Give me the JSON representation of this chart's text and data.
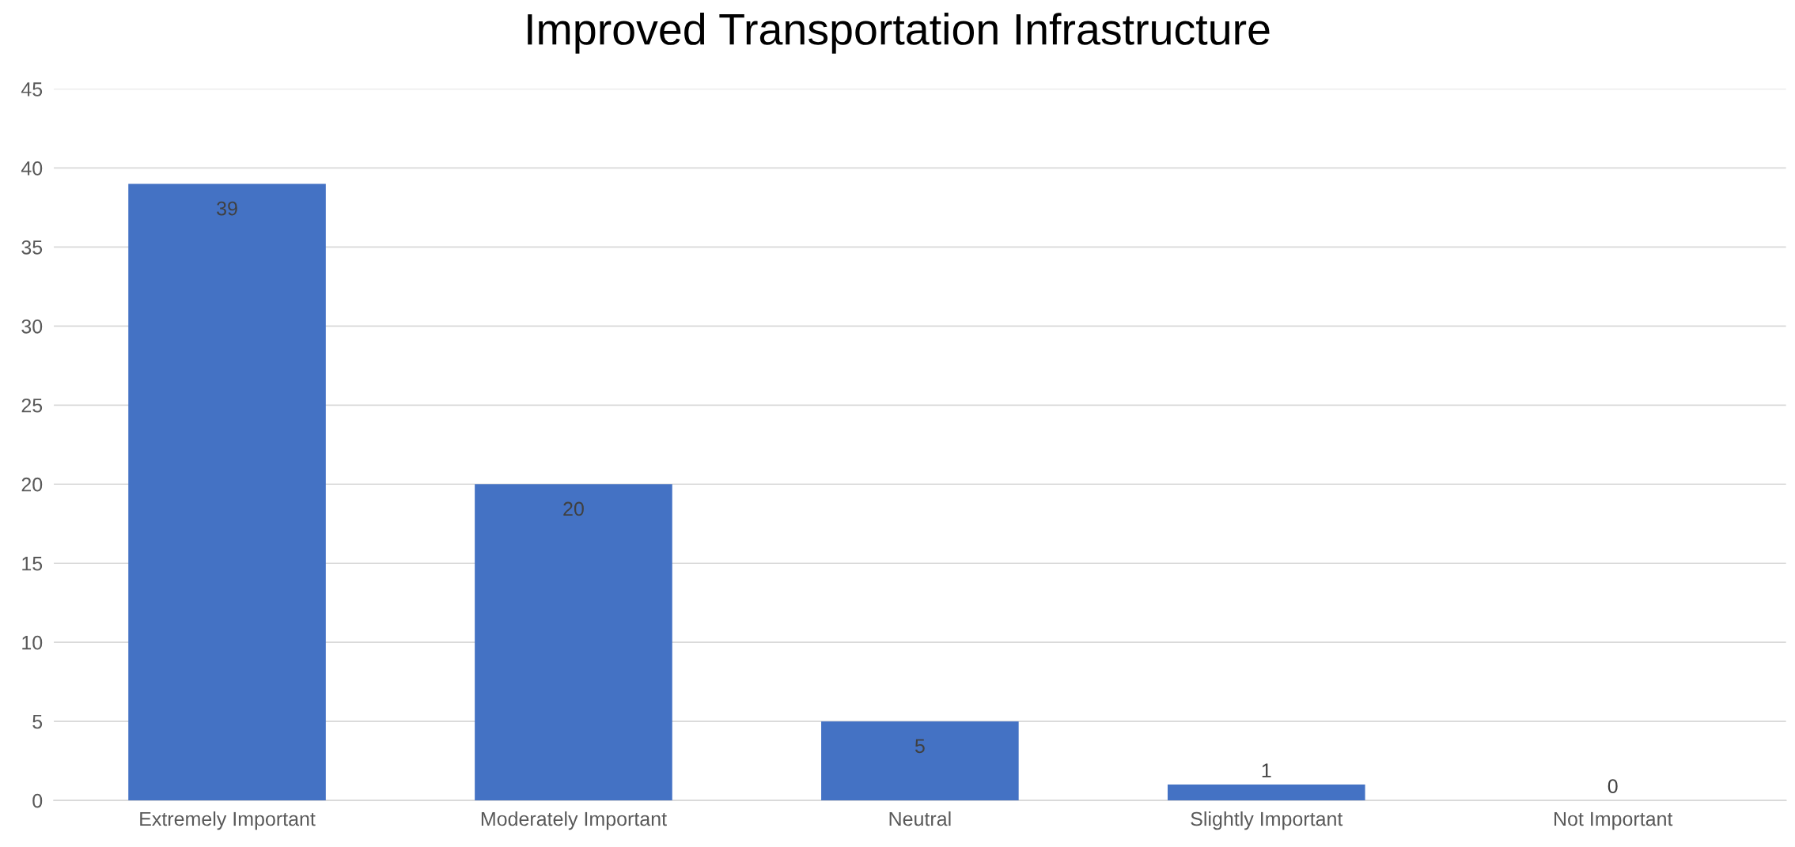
{
  "chart_data": {
    "type": "bar",
    "title": "Improved Transportation Infrastructure",
    "categories": [
      "Extremely Important",
      "Moderately Important",
      "Neutral",
      "Slightly Important",
      "Not Important"
    ],
    "values": [
      39,
      20,
      5,
      1,
      0
    ],
    "color": "#4472c4",
    "ylim": [
      0,
      45
    ],
    "yticks": [
      0,
      5,
      10,
      15,
      20,
      25,
      30,
      35,
      40,
      45
    ],
    "grid": "y",
    "data_labels": true
  }
}
